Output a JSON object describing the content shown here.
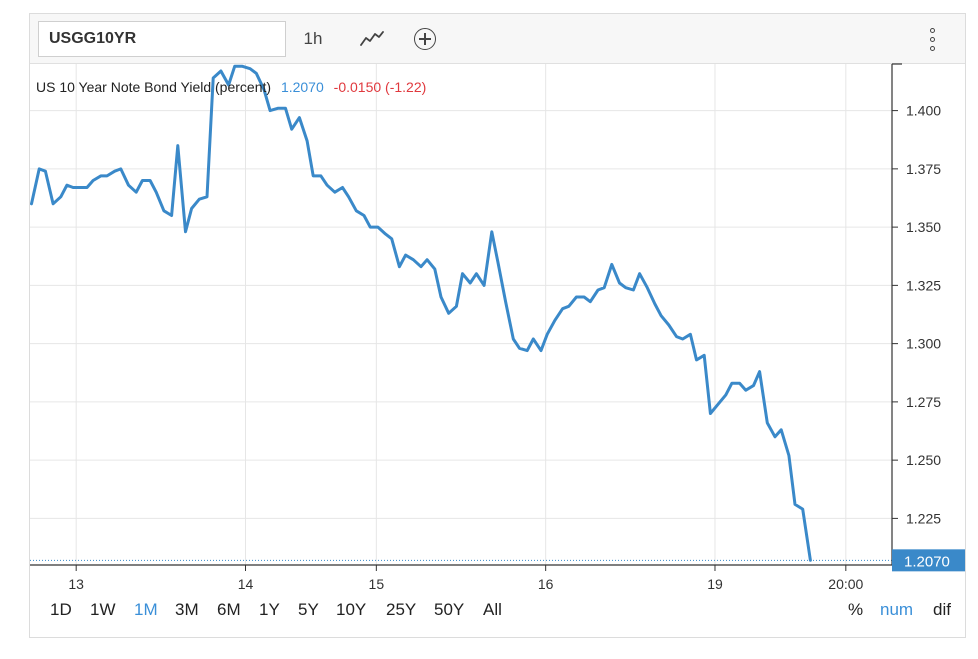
{
  "toolbar": {
    "symbol": "USGG10YR",
    "interval": "1h",
    "chart_type_icon": "line-chart-icon",
    "add_icon": "circle-plus-icon",
    "menu_icon": "vertical-dots-icon"
  },
  "legend": {
    "name": "US 10 Year Note Bond Yield (percent)",
    "value": "1.2070",
    "change": "-0.0150 (-1.22)"
  },
  "colors": {
    "line": "#3a89c9",
    "value": "#3a8fd8",
    "change": "#e0393e",
    "grid": "#e6e6e6"
  },
  "last_price_label": "1.2070",
  "ranges": [
    "1D",
    "1W",
    "1M",
    "3M",
    "6M",
    "1Y",
    "5Y",
    "10Y",
    "25Y",
    "50Y",
    "All"
  ],
  "active_range": "1M",
  "modes": [
    "%",
    "num",
    "dif"
  ],
  "active_mode": "num",
  "chart_data": {
    "type": "line",
    "title": "US 10 Year Note Bond Yield (percent)",
    "ylim": [
      1.205,
      1.42
    ],
    "y_ticks": [
      "1.225",
      "1.250",
      "1.275",
      "1.300",
      "1.325",
      "1.350",
      "1.375",
      "1.400"
    ],
    "x_ticks": [
      "13",
      "14",
      "15",
      "16",
      "19",
      "20:00"
    ],
    "x_tick_positions": [
      2.0,
      13.0,
      21.5,
      32.5,
      43.5,
      52.0
    ],
    "xlim": [
      -1,
      55
    ],
    "grid": true,
    "series": [
      {
        "values": [
          [
            -0.9,
            1.36
          ],
          [
            -0.4,
            1.375
          ],
          [
            0.0,
            1.374
          ],
          [
            0.5,
            1.36
          ],
          [
            1.0,
            1.363
          ],
          [
            1.4,
            1.368
          ],
          [
            1.8,
            1.367
          ],
          [
            2.3,
            1.367
          ],
          [
            2.7,
            1.367
          ],
          [
            3.1,
            1.37
          ],
          [
            3.6,
            1.372
          ],
          [
            4.0,
            1.372
          ],
          [
            4.5,
            1.374
          ],
          [
            4.9,
            1.375
          ],
          [
            5.4,
            1.368
          ],
          [
            5.9,
            1.365
          ],
          [
            6.3,
            1.37
          ],
          [
            6.8,
            1.37
          ],
          [
            7.2,
            1.365
          ],
          [
            7.7,
            1.357
          ],
          [
            8.2,
            1.355
          ],
          [
            8.6,
            1.385
          ],
          [
            9.1,
            1.348
          ],
          [
            9.5,
            1.358
          ],
          [
            10.0,
            1.362
          ],
          [
            10.5,
            1.363
          ],
          [
            10.9,
            1.414
          ],
          [
            11.4,
            1.417
          ],
          [
            11.9,
            1.411
          ],
          [
            12.3,
            1.419
          ],
          [
            12.8,
            1.419
          ],
          [
            13.3,
            1.418
          ],
          [
            13.7,
            1.416
          ],
          [
            14.2,
            1.409
          ],
          [
            14.6,
            1.4
          ],
          [
            15.1,
            1.401
          ],
          [
            15.6,
            1.401
          ],
          [
            16.0,
            1.392
          ],
          [
            16.5,
            1.397
          ],
          [
            17.0,
            1.387
          ],
          [
            17.4,
            1.372
          ],
          [
            17.9,
            1.372
          ],
          [
            18.3,
            1.368
          ],
          [
            18.8,
            1.365
          ],
          [
            19.3,
            1.367
          ],
          [
            19.7,
            1.363
          ],
          [
            20.2,
            1.357
          ],
          [
            20.7,
            1.355
          ],
          [
            21.1,
            1.35
          ],
          [
            21.6,
            1.35
          ],
          [
            22.1,
            1.347
          ],
          [
            22.5,
            1.345
          ],
          [
            23.0,
            1.333
          ],
          [
            23.4,
            1.338
          ],
          [
            23.9,
            1.336
          ],
          [
            24.4,
            1.333
          ],
          [
            24.8,
            1.336
          ],
          [
            25.3,
            1.332
          ],
          [
            25.7,
            1.32
          ],
          [
            26.2,
            1.313
          ],
          [
            26.7,
            1.316
          ],
          [
            27.1,
            1.33
          ],
          [
            27.6,
            1.326
          ],
          [
            28.0,
            1.33
          ],
          [
            28.5,
            1.325
          ],
          [
            29.0,
            1.348
          ],
          [
            29.4,
            1.335
          ],
          [
            29.9,
            1.318
          ],
          [
            30.4,
            1.302
          ],
          [
            30.8,
            1.298
          ],
          [
            31.3,
            1.297
          ],
          [
            31.7,
            1.302
          ],
          [
            32.2,
            1.297
          ],
          [
            32.6,
            1.304
          ],
          [
            33.1,
            1.31
          ],
          [
            33.6,
            1.315
          ],
          [
            34.0,
            1.316
          ],
          [
            34.5,
            1.32
          ],
          [
            35.0,
            1.32
          ],
          [
            35.4,
            1.318
          ],
          [
            35.9,
            1.323
          ],
          [
            36.3,
            1.324
          ],
          [
            36.8,
            1.334
          ],
          [
            37.3,
            1.326
          ],
          [
            37.7,
            1.324
          ],
          [
            38.2,
            1.323
          ],
          [
            38.6,
            1.33
          ],
          [
            39.1,
            1.324
          ],
          [
            39.6,
            1.317
          ],
          [
            40.0,
            1.312
          ],
          [
            40.5,
            1.308
          ],
          [
            41.0,
            1.303
          ],
          [
            41.4,
            1.302
          ],
          [
            41.9,
            1.304
          ],
          [
            42.3,
            1.293
          ],
          [
            42.8,
            1.295
          ],
          [
            43.2,
            1.27
          ],
          [
            43.7,
            1.274
          ],
          [
            44.2,
            1.278
          ],
          [
            44.6,
            1.283
          ],
          [
            45.1,
            1.283
          ],
          [
            45.5,
            1.28
          ],
          [
            46.0,
            1.282
          ],
          [
            46.4,
            1.288
          ],
          [
            46.9,
            1.266
          ],
          [
            47.4,
            1.26
          ],
          [
            47.8,
            1.263
          ],
          [
            48.3,
            1.252
          ],
          [
            48.7,
            1.231
          ],
          [
            49.2,
            1.229
          ],
          [
            49.7,
            1.207
          ]
        ]
      }
    ]
  }
}
